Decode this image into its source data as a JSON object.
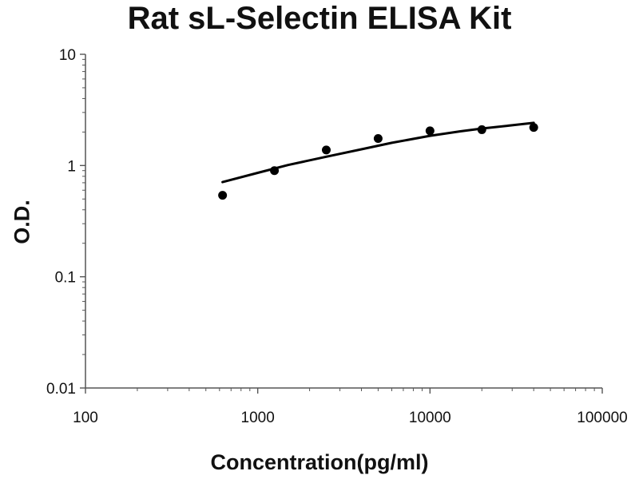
{
  "chart_data": {
    "type": "scatter",
    "title": "Rat sL-Selectin ELISA Kit",
    "xlabel": "Concentration(pg/ml)",
    "ylabel": "O.D.",
    "x_scale": "log",
    "y_scale": "log",
    "xlim": [
      100,
      100000
    ],
    "ylim": [
      0.01,
      10
    ],
    "x_ticks": [
      "100",
      "1000",
      "10000",
      "100000"
    ],
    "y_ticks": [
      "0.01",
      "0.1",
      "1",
      "10"
    ],
    "grid": false,
    "legend": "none",
    "series": [
      {
        "points": [
          {
            "x": 625,
            "y": 0.54
          },
          {
            "x": 1250,
            "y": 0.9
          },
          {
            "x": 2500,
            "y": 1.38
          },
          {
            "x": 5000,
            "y": 1.75
          },
          {
            "x": 10000,
            "y": 2.05
          },
          {
            "x": 20000,
            "y": 2.1
          },
          {
            "x": 40000,
            "y": 2.2
          }
        ]
      }
    ],
    "fit_curve": {
      "type": "power",
      "x": [
        625,
        1000,
        1500,
        2500,
        4000,
        6000,
        10000,
        15000,
        20000,
        30000,
        40000
      ],
      "y": [
        0.71,
        0.86,
        1.01,
        1.2,
        1.4,
        1.6,
        1.85,
        2.03,
        2.15,
        2.3,
        2.42
      ]
    },
    "colors": {
      "marker": "#000000",
      "curve": "#000000",
      "axis": "#555555",
      "text": "#111111"
    }
  }
}
